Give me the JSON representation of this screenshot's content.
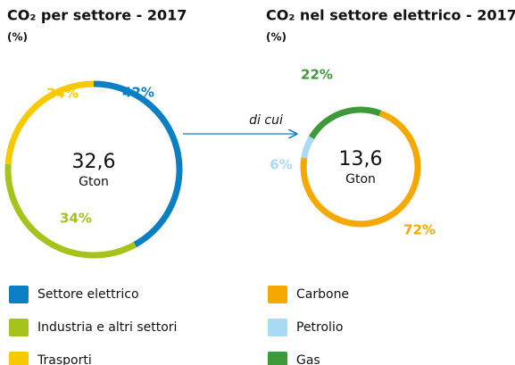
{
  "chart_data": [
    {
      "type": "pie",
      "title": "CO₂ per settore - 2017",
      "subtitle": "(%)",
      "center_value": "32,6",
      "center_unit": "Gton",
      "categories": [
        "Settore elettrico",
        "Industria e altri settori",
        "Trasporti"
      ],
      "values": [
        42,
        34,
        24
      ],
      "value_labels": [
        "42%",
        "34%",
        "24%"
      ],
      "colors": [
        "#0a7fc4",
        "#a5c31b",
        "#f7c900"
      ],
      "legend": true
    },
    {
      "type": "pie",
      "title": "CO₂ nel settore elettrico - 2017",
      "subtitle": "(%)",
      "center_value": "13,6",
      "center_unit": "Gton",
      "categories": [
        "Carbone",
        "Petrolio",
        "Gas"
      ],
      "values": [
        72,
        6,
        22
      ],
      "value_labels": [
        "72%",
        "6%",
        "22%"
      ],
      "colors": [
        "#f5a900",
        "#a9daf3",
        "#3c9a3a"
      ],
      "legend": true
    }
  ],
  "connector_label": "di cui"
}
